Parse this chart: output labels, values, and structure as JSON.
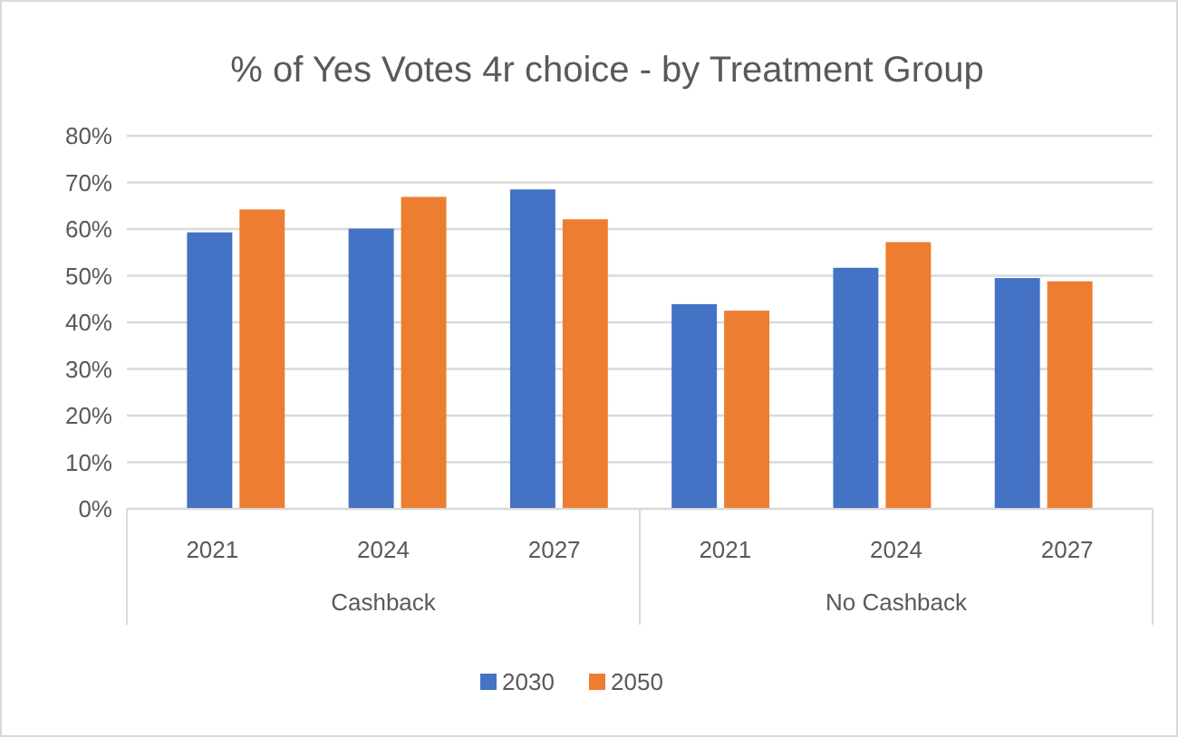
{
  "chart_data": {
    "type": "bar",
    "title": "% of Yes Votes 4r choice -  by Treatment Group",
    "categories": [
      "2021",
      "2024",
      "2027",
      "2021",
      "2024",
      "2027"
    ],
    "annotations": [
      "Cashback",
      "No Cashback"
    ],
    "series": [
      {
        "name": "2030",
        "color": "#4472c4",
        "values": [
          59.3,
          60.1,
          68.5,
          43.9,
          51.7,
          49.5
        ]
      },
      {
        "name": "2050",
        "color": "#ed7d31",
        "values": [
          64.2,
          66.9,
          62.1,
          42.5,
          57.2,
          48.8
        ]
      }
    ],
    "ylim": [
      0,
      80
    ],
    "yticks": [
      {
        "value": 0,
        "label": "0%"
      },
      {
        "value": 10,
        "label": "10%"
      },
      {
        "value": 20,
        "label": "20%"
      },
      {
        "value": 30,
        "label": "30%"
      },
      {
        "value": 40,
        "label": "40%"
      },
      {
        "value": 50,
        "label": "50%"
      },
      {
        "value": 60,
        "label": "60%"
      },
      {
        "value": 70,
        "label": "70%"
      },
      {
        "value": 80,
        "label": "80%"
      }
    ],
    "grid": "y",
    "legend": "bottom"
  }
}
